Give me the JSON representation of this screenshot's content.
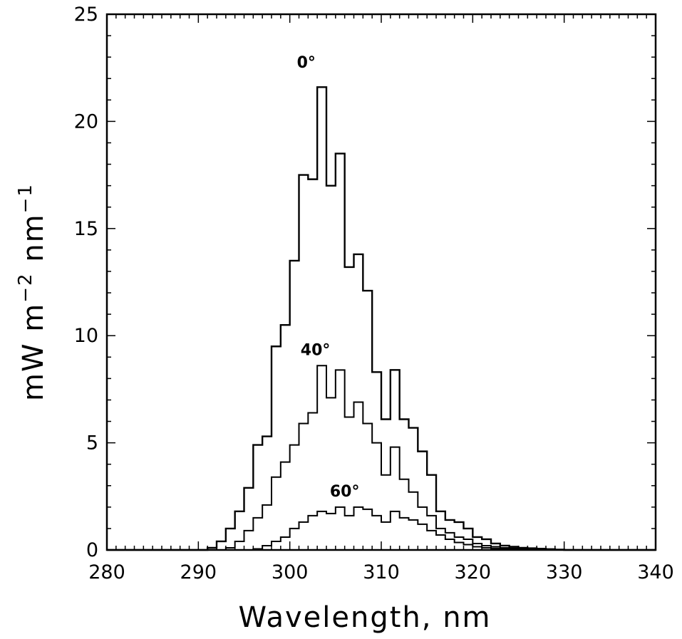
{
  "chart_data": {
    "type": "line",
    "step": true,
    "xlabel": "Wavelength, nm",
    "ylabel": "mW m",
    "ylabel_exp1": "−2",
    "ylabel_mid": " nm",
    "ylabel_exp2": "−1",
    "xlim": [
      280,
      340
    ],
    "ylim": [
      0,
      25
    ],
    "xticks": [
      280,
      290,
      300,
      310,
      320,
      330,
      340
    ],
    "yticks": [
      0,
      5,
      10,
      15,
      20,
      25
    ],
    "grid": false,
    "series": [
      {
        "name": "0°",
        "x": [
          280,
          291,
          292,
          293,
          294,
          295,
          296,
          297,
          298,
          299,
          300,
          301,
          302,
          303,
          304,
          305,
          306,
          307,
          308,
          309,
          310,
          311,
          312,
          313,
          314,
          315,
          316,
          317,
          318,
          319,
          320,
          321,
          322,
          323,
          324,
          325,
          326,
          327,
          328,
          329,
          330,
          340
        ],
        "values": [
          0,
          0.1,
          0.4,
          1.0,
          1.8,
          2.9,
          4.9,
          5.3,
          9.5,
          10.5,
          13.5,
          17.5,
          17.3,
          21.6,
          17.0,
          18.5,
          13.2,
          13.8,
          12.1,
          8.3,
          6.1,
          8.4,
          6.1,
          5.7,
          4.6,
          3.5,
          1.8,
          1.4,
          1.3,
          1.0,
          0.6,
          0.5,
          0.3,
          0.2,
          0.15,
          0.1,
          0.08,
          0.06,
          0.04,
          0.02,
          0,
          0
        ]
      },
      {
        "name": "40°",
        "x": [
          280,
          293,
          294,
          295,
          296,
          297,
          298,
          299,
          300,
          301,
          302,
          303,
          304,
          305,
          306,
          307,
          308,
          309,
          310,
          311,
          312,
          313,
          314,
          315,
          316,
          317,
          318,
          319,
          320,
          321,
          322,
          323,
          324,
          325,
          326,
          327,
          328,
          329,
          330,
          340
        ],
        "values": [
          0,
          0.1,
          0.4,
          0.9,
          1.5,
          2.1,
          3.4,
          4.1,
          4.9,
          5.9,
          6.4,
          8.6,
          7.1,
          8.4,
          6.2,
          6.9,
          5.9,
          5.0,
          3.5,
          4.8,
          3.3,
          2.7,
          2.0,
          1.6,
          1.0,
          0.8,
          0.6,
          0.5,
          0.3,
          0.2,
          0.15,
          0.1,
          0.08,
          0.05,
          0.03,
          0.02,
          0.01,
          0,
          0,
          0
        ]
      },
      {
        "name": "60°",
        "x": [
          280,
          296,
          297,
          298,
          299,
          300,
          301,
          302,
          303,
          304,
          305,
          306,
          307,
          308,
          309,
          310,
          311,
          312,
          313,
          314,
          315,
          316,
          317,
          318,
          319,
          320,
          321,
          322,
          323,
          324,
          325,
          326,
          340
        ],
        "values": [
          0,
          0.05,
          0.2,
          0.4,
          0.6,
          1.0,
          1.3,
          1.6,
          1.8,
          1.7,
          2.0,
          1.6,
          2.0,
          1.9,
          1.6,
          1.3,
          1.8,
          1.5,
          1.4,
          1.2,
          0.9,
          0.7,
          0.5,
          0.35,
          0.25,
          0.15,
          0.1,
          0.07,
          0.05,
          0.03,
          0.02,
          0,
          0
        ]
      }
    ],
    "annotations": [
      {
        "text": "0°",
        "x": 301.8,
        "y": 22.5
      },
      {
        "text": "40°",
        "x": 302.8,
        "y": 9.1
      },
      {
        "text": "60°",
        "x": 306.0,
        "y": 2.5
      }
    ]
  }
}
